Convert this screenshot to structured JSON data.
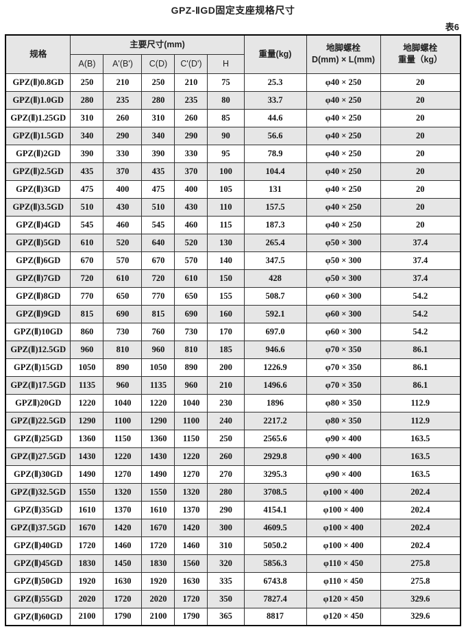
{
  "page": {
    "title": "GPZ-ⅡGD固定支座规格尺寸",
    "table_label": "表6"
  },
  "table": {
    "header": {
      "spec": "规格",
      "main_dims_group": "主要尺寸(mm)",
      "dim_cols": {
        "a": "A(B)",
        "a1": "A'(B')",
        "c": "C(D)",
        "c1": "C'(D')",
        "h": "H"
      },
      "weight": "重量(kg)",
      "bolt_line1": "地脚螺栓",
      "bolt_line2": "D(mm) × L(mm)",
      "bolt_weight_line1": "地脚螺栓",
      "bolt_weight_line2": "重量（kg）"
    },
    "rows": [
      {
        "spec": "GPZ(Ⅱ)0.8GD",
        "a": "250",
        "a1": "210",
        "c": "250",
        "c1": "210",
        "h": "75",
        "weight": "25.3",
        "bolt": "φ40 × 250",
        "bolt_weight": "20"
      },
      {
        "spec": "GPZ(Ⅱ)1.0GD",
        "a": "280",
        "a1": "235",
        "c": "280",
        "c1": "235",
        "h": "80",
        "weight": "33.7",
        "bolt": "φ40 × 250",
        "bolt_weight": "20"
      },
      {
        "spec": "GPZ(Ⅱ)1.25GD",
        "a": "310",
        "a1": "260",
        "c": "310",
        "c1": "260",
        "h": "85",
        "weight": "44.6",
        "bolt": "φ40 × 250",
        "bolt_weight": "20"
      },
      {
        "spec": "GPZ(Ⅱ)1.5GD",
        "a": "340",
        "a1": "290",
        "c": "340",
        "c1": "290",
        "h": "90",
        "weight": "56.6",
        "bolt": "φ40 × 250",
        "bolt_weight": "20"
      },
      {
        "spec": "GPZ(Ⅱ)2GD",
        "a": "390",
        "a1": "330",
        "c": "390",
        "c1": "330",
        "h": "95",
        "weight": "78.9",
        "bolt": "φ40 × 250",
        "bolt_weight": "20"
      },
      {
        "spec": "GPZ(Ⅱ)2.5GD",
        "a": "435",
        "a1": "370",
        "c": "435",
        "c1": "370",
        "h": "100",
        "weight": "104.4",
        "bolt": "φ40 × 250",
        "bolt_weight": "20"
      },
      {
        "spec": "GPZ(Ⅱ)3GD",
        "a": "475",
        "a1": "400",
        "c": "475",
        "c1": "400",
        "h": "105",
        "weight": "131",
        "bolt": "φ40 × 250",
        "bolt_weight": "20"
      },
      {
        "spec": "GPZ(Ⅱ)3.5GD",
        "a": "510",
        "a1": "430",
        "c": "510",
        "c1": "430",
        "h": "110",
        "weight": "157.5",
        "bolt": "φ40 × 250",
        "bolt_weight": "20"
      },
      {
        "spec": "GPZ(Ⅱ)4GD",
        "a": "545",
        "a1": "460",
        "c": "545",
        "c1": "460",
        "h": "115",
        "weight": "187.3",
        "bolt": "φ40 × 250",
        "bolt_weight": "20"
      },
      {
        "spec": "GPZ(Ⅱ)5GD",
        "a": "610",
        "a1": "520",
        "c": "640",
        "c1": "520",
        "h": "130",
        "weight": "265.4",
        "bolt": "φ50 × 300",
        "bolt_weight": "37.4"
      },
      {
        "spec": "GPZ(Ⅱ)6GD",
        "a": "670",
        "a1": "570",
        "c": "670",
        "c1": "570",
        "h": "140",
        "weight": "347.5",
        "bolt": "φ50 × 300",
        "bolt_weight": "37.4"
      },
      {
        "spec": "GPZ(Ⅱ)7GD",
        "a": "720",
        "a1": "610",
        "c": "720",
        "c1": "610",
        "h": "150",
        "weight": "428",
        "bolt": "φ50 × 300",
        "bolt_weight": "37.4"
      },
      {
        "spec": "GPZ(Ⅱ)8GD",
        "a": "770",
        "a1": "650",
        "c": "770",
        "c1": "650",
        "h": "155",
        "weight": "508.7",
        "bolt": "φ60 × 300",
        "bolt_weight": "54.2"
      },
      {
        "spec": "GPZ(Ⅱ)9GD",
        "a": "815",
        "a1": "690",
        "c": "815",
        "c1": "690",
        "h": "160",
        "weight": "592.1",
        "bolt": "φ60 × 300",
        "bolt_weight": "54.2"
      },
      {
        "spec": "GPZ(Ⅱ)10GD",
        "a": "860",
        "a1": "730",
        "c": "760",
        "c1": "730",
        "h": "170",
        "weight": "697.0",
        "bolt": "φ60 × 300",
        "bolt_weight": "54.2"
      },
      {
        "spec": "GPZ(Ⅱ)12.5GD",
        "a": "960",
        "a1": "810",
        "c": "960",
        "c1": "810",
        "h": "185",
        "weight": "946.6",
        "bolt": "φ70 × 350",
        "bolt_weight": "86.1"
      },
      {
        "spec": "GPZ(Ⅱ)15GD",
        "a": "1050",
        "a1": "890",
        "c": "1050",
        "c1": "890",
        "h": "200",
        "weight": "1226.9",
        "bolt": "φ70 × 350",
        "bolt_weight": "86.1"
      },
      {
        "spec": "GPZ(Ⅱ)17.5GD",
        "a": "1135",
        "a1": "960",
        "c": "1135",
        "c1": "960",
        "h": "210",
        "weight": "1496.6",
        "bolt": "φ70 × 350",
        "bolt_weight": "86.1"
      },
      {
        "spec": "GPZⅡ)20GD",
        "a": "1220",
        "a1": "1040",
        "c": "1220",
        "c1": "1040",
        "h": "230",
        "weight": "1896",
        "bolt": "φ80 × 350",
        "bolt_weight": "112.9"
      },
      {
        "spec": "GPZ(Ⅱ)22.5GD",
        "a": "1290",
        "a1": "1100",
        "c": "1290",
        "c1": "1100",
        "h": "240",
        "weight": "2217.2",
        "bolt": "φ80 × 350",
        "bolt_weight": "112.9"
      },
      {
        "spec": "GPZ(Ⅱ)25GD",
        "a": "1360",
        "a1": "1150",
        "c": "1360",
        "c1": "1150",
        "h": "250",
        "weight": "2565.6",
        "bolt": "φ90 × 400",
        "bolt_weight": "163.5"
      },
      {
        "spec": "GPZ(Ⅱ)27.5GD",
        "a": "1430",
        "a1": "1220",
        "c": "1430",
        "c1": "1220",
        "h": "260",
        "weight": "2929.8",
        "bolt": "φ90 × 400",
        "bolt_weight": "163.5"
      },
      {
        "spec": "GPZ(Ⅱ)30GD",
        "a": "1490",
        "a1": "1270",
        "c": "1490",
        "c1": "1270",
        "h": "270",
        "weight": "3295.3",
        "bolt": "φ90 × 400",
        "bolt_weight": "163.5"
      },
      {
        "spec": "GPZ(Ⅱ)32.5GD",
        "a": "1550",
        "a1": "1320",
        "c": "1550",
        "c1": "1320",
        "h": "280",
        "weight": "3708.5",
        "bolt": "φ100 × 400",
        "bolt_weight": "202.4"
      },
      {
        "spec": "GPZ(Ⅱ)35GD",
        "a": "1610",
        "a1": "1370",
        "c": "1610",
        "c1": "1370",
        "h": "290",
        "weight": "4154.1",
        "bolt": "φ100 × 400",
        "bolt_weight": "202.4"
      },
      {
        "spec": "GPZ(Ⅱ)37.5GD",
        "a": "1670",
        "a1": "1420",
        "c": "1670",
        "c1": "1420",
        "h": "300",
        "weight": "4609.5",
        "bolt": "φ100 × 400",
        "bolt_weight": "202.4"
      },
      {
        "spec": "GPZ(Ⅱ)40GD",
        "a": "1720",
        "a1": "1460",
        "c": "1720",
        "c1": "1460",
        "h": "310",
        "weight": "5050.2",
        "bolt": "φ100 × 400",
        "bolt_weight": "202.4"
      },
      {
        "spec": "GPZ(Ⅱ)45GD",
        "a": "1830",
        "a1": "1450",
        "c": "1830",
        "c1": "1560",
        "h": "320",
        "weight": "5856.3",
        "bolt": "φ110 × 450",
        "bolt_weight": "275.8"
      },
      {
        "spec": "GPZ(Ⅱ)50GD",
        "a": "1920",
        "a1": "1630",
        "c": "1920",
        "c1": "1630",
        "h": "335",
        "weight": "6743.8",
        "bolt": "φ110 × 450",
        "bolt_weight": "275.8"
      },
      {
        "spec": "GPZ(Ⅱ)55GD",
        "a": "2020",
        "a1": "1720",
        "c": "2020",
        "c1": "1720",
        "h": "350",
        "weight": "7827.4",
        "bolt": "φ120 × 450",
        "bolt_weight": "329.6"
      },
      {
        "spec": "GPZ(Ⅱ)60GD",
        "a": "2100",
        "a1": "1790",
        "c": "2100",
        "c1": "1790",
        "h": "365",
        "weight": "8817",
        "bolt": "φ120 × 450",
        "bolt_weight": "329.6"
      }
    ]
  },
  "colors": {
    "row_alt_background": "#e6e6e6",
    "header_background": "#e6e6e6",
    "border": "#2e2e2e",
    "text": "#111111"
  }
}
